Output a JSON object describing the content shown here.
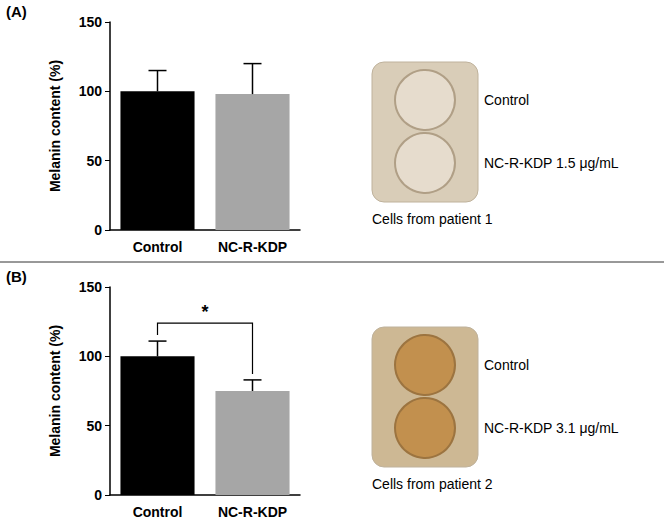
{
  "chart_data": [
    {
      "type": "bar",
      "title": "(A)",
      "y_label": "Melanin content (%)",
      "categories": [
        "Control",
        "NC-R-KDP"
      ],
      "values": [
        100,
        98
      ],
      "errors": [
        15,
        22
      ],
      "colors": [
        "#000000",
        "#a6a6a6"
      ],
      "ylim": [
        0,
        150
      ],
      "yticks": [
        0,
        50,
        100,
        150
      ],
      "grid": false,
      "annotations": {
        "well_labels": [
          "Control",
          "NC-R-KDP 1.5 μg/mL"
        ],
        "caption": "Cells from patient 1"
      }
    },
    {
      "type": "bar",
      "title": "(B)",
      "y_label": "Melanin content (%)",
      "categories": [
        "Control",
        "NC-R-KDP"
      ],
      "values": [
        100,
        75
      ],
      "errors": [
        11,
        8
      ],
      "colors": [
        "#000000",
        "#a6a6a6"
      ],
      "ylim": [
        0,
        150
      ],
      "yticks": [
        0,
        50,
        100,
        150
      ],
      "grid": false,
      "annotations": {
        "significance": "*",
        "well_labels": [
          "Control",
          "NC-R-KDP 3.1 μg/mL"
        ],
        "caption": "Cells from patient 2"
      }
    }
  ]
}
